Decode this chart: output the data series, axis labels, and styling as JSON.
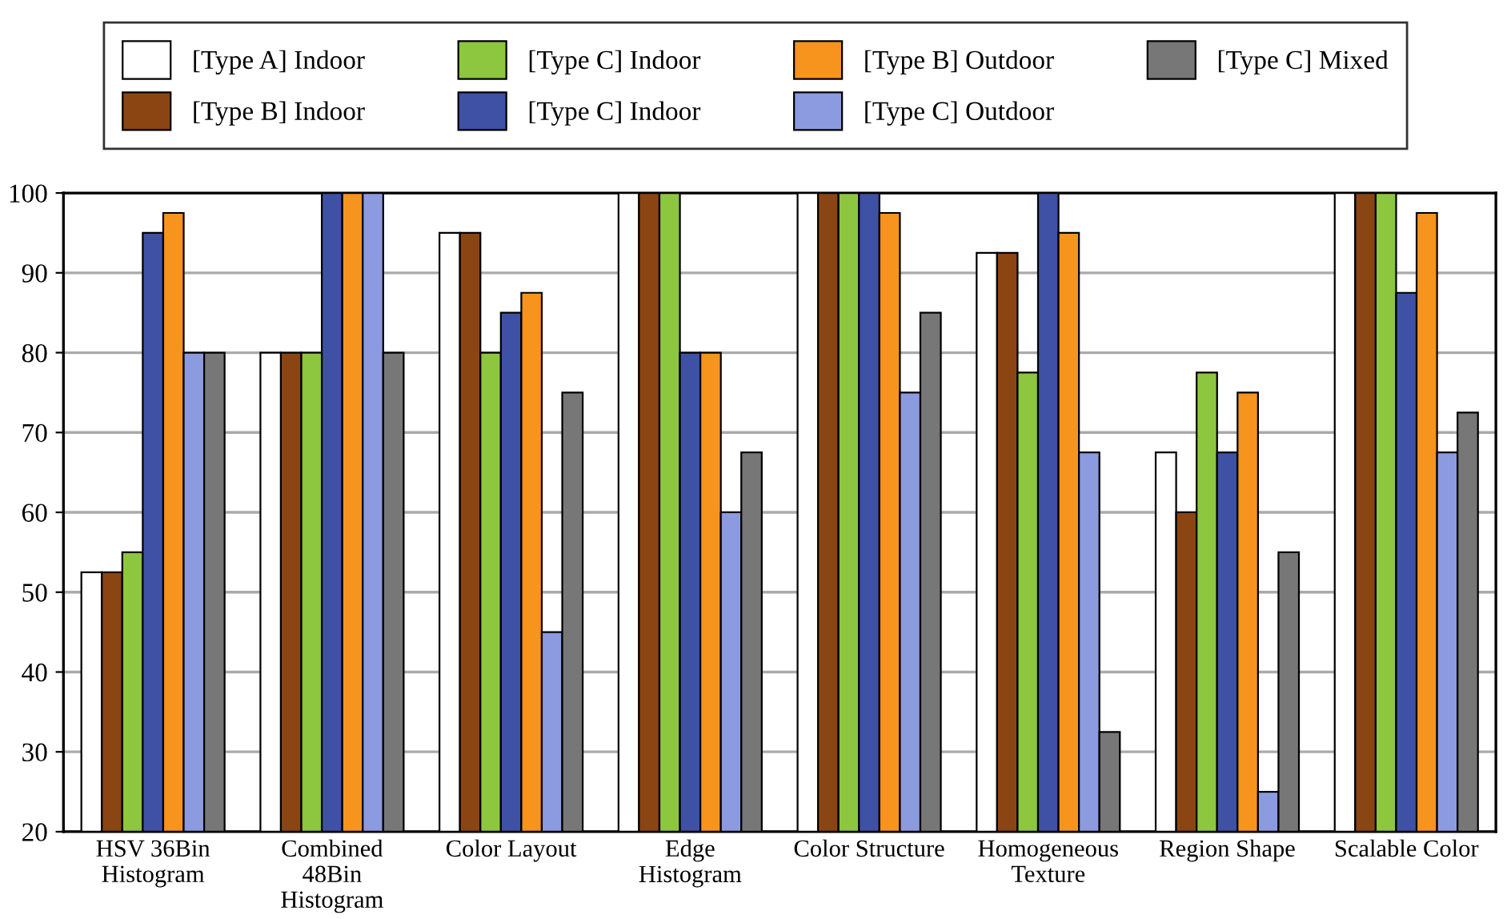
{
  "chart_data": {
    "type": "bar",
    "categories": [
      "HSV 36Bin\nHistogram",
      "Combined\n48Bin\nHistogram",
      "Color Layout",
      "Edge\nHistogram",
      "Color Structure",
      "Homogeneous\nTexture",
      "Region Shape",
      "Scalable Color"
    ],
    "series": [
      {
        "name": "[Type A] Indoor",
        "color": "#ffffff",
        "values": [
          52.5,
          80,
          95,
          100,
          100,
          92.5,
          67.5,
          100
        ]
      },
      {
        "name": "[Type B] Indoor",
        "color": "#8b4513",
        "values": [
          52.5,
          80,
          95,
          100,
          100,
          92.5,
          60,
          100
        ]
      },
      {
        "name": "[Type C] Indoor",
        "color": "#8dc63f",
        "values": [
          55,
          80,
          80,
          100,
          100,
          77.5,
          77.5,
          100
        ]
      },
      {
        "name": "[Type C] Indoor",
        "color": "#3f51a5",
        "values": [
          95,
          100,
          85,
          80,
          100,
          100,
          67.5,
          87.5
        ]
      },
      {
        "name": "[Type B] Outdoor",
        "color": "#f7941d",
        "values": [
          97.5,
          100,
          87.5,
          80,
          97.5,
          95,
          75,
          97.5
        ]
      },
      {
        "name": "[Type C] Outdoor",
        "color": "#8c9be0",
        "values": [
          80,
          100,
          45,
          60,
          75,
          67.5,
          25,
          67.5
        ]
      },
      {
        "name": "[Type C] Mixed",
        "color": "#777777",
        "values": [
          80,
          80,
          75,
          67.5,
          85,
          32.5,
          55,
          72.5
        ]
      }
    ],
    "ylim": [
      20,
      100
    ],
    "yticks": [
      20,
      30,
      40,
      50,
      60,
      70,
      80,
      90,
      100
    ],
    "grid": "y",
    "legend": "top"
  }
}
